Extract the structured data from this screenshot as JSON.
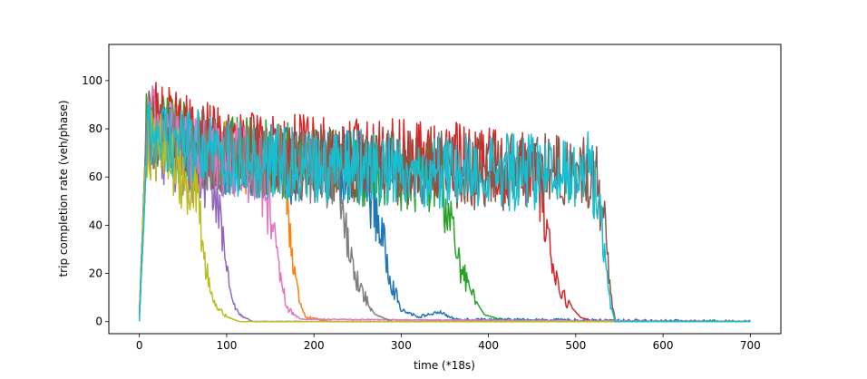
{
  "chart_data": {
    "type": "line",
    "title": "",
    "xlabel": "time (*18s)",
    "ylabel": "trip completion rate (veh/phase)",
    "xlim": [
      -35,
      735
    ],
    "ylim": [
      -5,
      115
    ],
    "xticks": [
      0,
      100,
      200,
      300,
      400,
      500,
      600,
      700
    ],
    "yticks": [
      0,
      20,
      40,
      60,
      80,
      100
    ],
    "xtick_labels": [
      "0",
      "100",
      "200",
      "300",
      "400",
      "500",
      "600",
      "700"
    ],
    "ytick_labels": [
      "0",
      "20",
      "40",
      "60",
      "80",
      "100"
    ],
    "grid": false,
    "legend": "none",
    "series": [
      {
        "color": "#1f77b4",
        "rise_end": 8,
        "decay_start": 260,
        "end_level": 1.0,
        "x_end": 700,
        "points": [
          [
            0,
            2
          ],
          [
            8,
            82
          ],
          [
            50,
            70
          ],
          [
            100,
            68
          ],
          [
            150,
            65
          ],
          [
            200,
            64
          ],
          [
            240,
            65
          ],
          [
            262,
            60
          ],
          [
            275,
            40
          ],
          [
            290,
            15
          ],
          [
            300,
            5
          ],
          [
            320,
            2
          ],
          [
            345,
            4
          ],
          [
            360,
            1
          ],
          [
            700,
            0
          ]
        ]
      },
      {
        "color": "#ff7f0e",
        "rise_end": 8,
        "decay_start": 165,
        "end_level": 0.3,
        "x_end": 700,
        "points": [
          [
            0,
            2
          ],
          [
            8,
            80
          ],
          [
            60,
            70
          ],
          [
            120,
            68
          ],
          [
            160,
            66
          ],
          [
            168,
            60
          ],
          [
            175,
            30
          ],
          [
            183,
            8
          ],
          [
            190,
            2
          ],
          [
            220,
            0
          ],
          [
            700,
            0
          ]
        ]
      },
      {
        "color": "#2ca02c",
        "rise_end": 8,
        "decay_start": 345,
        "end_level": 0.3,
        "x_end": 700,
        "points": [
          [
            0,
            2
          ],
          [
            8,
            80
          ],
          [
            100,
            70
          ],
          [
            200,
            66
          ],
          [
            300,
            62
          ],
          [
            345,
            60
          ],
          [
            355,
            45
          ],
          [
            365,
            25
          ],
          [
            380,
            12
          ],
          [
            395,
            3
          ],
          [
            420,
            0
          ],
          [
            700,
            0
          ]
        ]
      },
      {
        "color": "#d62728",
        "rise_end": 10,
        "decay_start": 455,
        "end_level": 0.3,
        "x_end": 700,
        "points": [
          [
            0,
            2
          ],
          [
            10,
            85
          ],
          [
            100,
            72
          ],
          [
            200,
            70
          ],
          [
            300,
            68
          ],
          [
            400,
            66
          ],
          [
            455,
            62
          ],
          [
            465,
            45
          ],
          [
            475,
            20
          ],
          [
            490,
            8
          ],
          [
            505,
            2
          ],
          [
            520,
            0
          ],
          [
            700,
            0
          ]
        ]
      },
      {
        "color": "#9467bd",
        "rise_end": 8,
        "decay_start": 80,
        "end_level": 0.3,
        "x_end": 700,
        "points": [
          [
            0,
            2
          ],
          [
            8,
            78
          ],
          [
            40,
            68
          ],
          [
            70,
            62
          ],
          [
            85,
            55
          ],
          [
            95,
            35
          ],
          [
            105,
            10
          ],
          [
            115,
            3
          ],
          [
            130,
            0
          ],
          [
            700,
            0
          ]
        ]
      },
      {
        "color": "#8c564b",
        "rise_end": 10,
        "decay_start": 525,
        "end_level": 0.3,
        "x_end": 700,
        "points": [
          [
            0,
            2
          ],
          [
            10,
            82
          ],
          [
            100,
            68
          ],
          [
            200,
            66
          ],
          [
            300,
            64
          ],
          [
            400,
            62
          ],
          [
            500,
            62
          ],
          [
            525,
            60
          ],
          [
            533,
            40
          ],
          [
            540,
            10
          ],
          [
            546,
            0
          ],
          [
            700,
            0
          ]
        ]
      },
      {
        "color": "#e377c2",
        "rise_end": 10,
        "decay_start": 140,
        "end_level": 0.3,
        "x_end": 700,
        "points": [
          [
            0,
            2
          ],
          [
            10,
            85
          ],
          [
            60,
            70
          ],
          [
            120,
            66
          ],
          [
            140,
            62
          ],
          [
            150,
            45
          ],
          [
            160,
            20
          ],
          [
            170,
            5
          ],
          [
            185,
            1
          ],
          [
            700,
            0
          ]
        ]
      },
      {
        "color": "#7f7f7f",
        "rise_end": 8,
        "decay_start": 225,
        "end_level": 0.3,
        "x_end": 700,
        "points": [
          [
            0,
            2
          ],
          [
            8,
            80
          ],
          [
            80,
            68
          ],
          [
            160,
            66
          ],
          [
            225,
            62
          ],
          [
            232,
            48
          ],
          [
            240,
            28
          ],
          [
            255,
            12
          ],
          [
            270,
            3
          ],
          [
            290,
            0
          ],
          [
            700,
            0
          ]
        ]
      },
      {
        "color": "#bcbd22",
        "rise_end": 8,
        "decay_start": 60,
        "end_level": 0.3,
        "x_end": 700,
        "points": [
          [
            0,
            2
          ],
          [
            8,
            75
          ],
          [
            40,
            66
          ],
          [
            60,
            58
          ],
          [
            68,
            45
          ],
          [
            75,
            25
          ],
          [
            85,
            8
          ],
          [
            100,
            2
          ],
          [
            115,
            0
          ],
          [
            700,
            0
          ]
        ]
      },
      {
        "color": "#17becf",
        "rise_end": 10,
        "decay_start": 500,
        "end_level": 0.3,
        "x_end": 700,
        "points": [
          [
            0,
            2
          ],
          [
            10,
            80
          ],
          [
            100,
            68
          ],
          [
            200,
            65
          ],
          [
            300,
            64
          ],
          [
            400,
            62
          ],
          [
            500,
            62
          ],
          [
            520,
            60
          ],
          [
            530,
            40
          ],
          [
            538,
            10
          ],
          [
            545,
            0
          ],
          [
            700,
            0
          ]
        ]
      }
    ]
  }
}
